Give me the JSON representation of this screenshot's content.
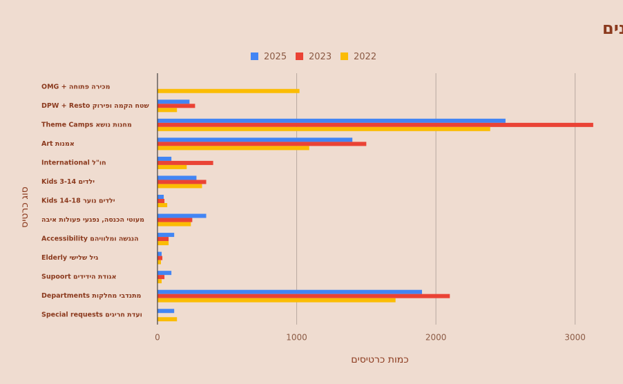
{
  "chart_data": {
    "type": "hbar",
    "title": "תוכנית כרטוס - השוואה בין שנים",
    "x_label": "כמות כרטיסים",
    "y_label": "סוג כרטיס",
    "categories": [
      "מכירה פתוחה + OMG",
      "שטח הקמה ופירוק DPW + Resto",
      "מחנות נושא Theme Camps",
      "אמנות Art",
      "חו\"ל International",
      "ילדים Kids 3-14",
      "ילדים נוער Kids 14-18",
      "מעוטי הכנסה, נפגעי פעולות איבה",
      "הנגשה ומלוויהם Accessibility",
      "גיל שלישי Elderly",
      "אגודת הידידים Supoort",
      "מתנדבי מחלקות Departments",
      "ועדת חריגים Special requests"
    ],
    "series": [
      {
        "name": "2025",
        "color": "#4285f4",
        "values": [
          0,
          230,
          2500,
          1400,
          100,
          280,
          45,
          350,
          120,
          30,
          100,
          1900,
          120
        ]
      },
      {
        "name": "2023",
        "color": "#ea4335",
        "values": [
          0,
          270,
          3130,
          1500,
          400,
          350,
          50,
          250,
          80,
          35,
          50,
          2100,
          0
        ]
      },
      {
        "name": "2022",
        "color": "#fbbc04",
        "values": [
          1020,
          140,
          2390,
          1090,
          210,
          320,
          70,
          240,
          80,
          25,
          30,
          1710,
          140
        ]
      }
    ],
    "xlim": [
      0,
      3200
    ],
    "xticks": [
      0,
      1000,
      2000,
      3000
    ],
    "grid": true,
    "legend": "top"
  }
}
